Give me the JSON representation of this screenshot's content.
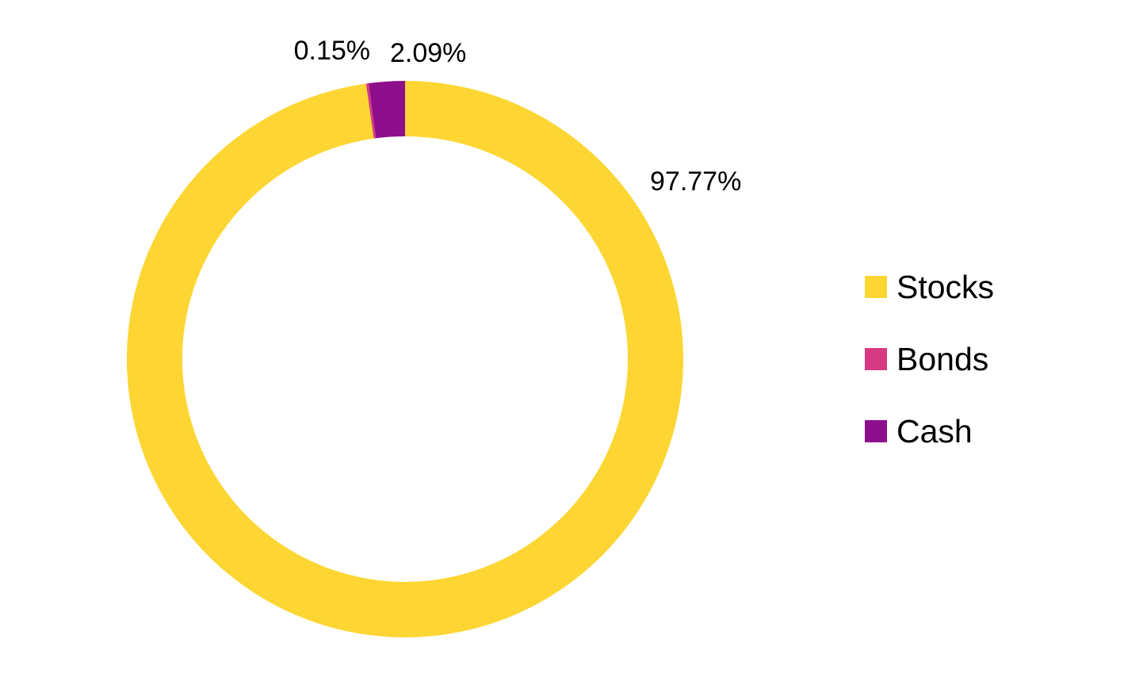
{
  "chart_data": {
    "type": "pie",
    "donut": true,
    "categories": [
      "Stocks",
      "Bonds",
      "Cash"
    ],
    "values": [
      97.77,
      0.15,
      2.09
    ],
    "data_labels": [
      "97.77%",
      "0.15%",
      "2.09%"
    ],
    "colors": [
      "#FDD633",
      "#D63A82",
      "#8E0F8C"
    ],
    "start_angle_deg": 0,
    "direction": "clockwise",
    "legend": {
      "position": "right",
      "entries": [
        "Stocks",
        "Bonds",
        "Cash"
      ]
    },
    "title": ""
  }
}
